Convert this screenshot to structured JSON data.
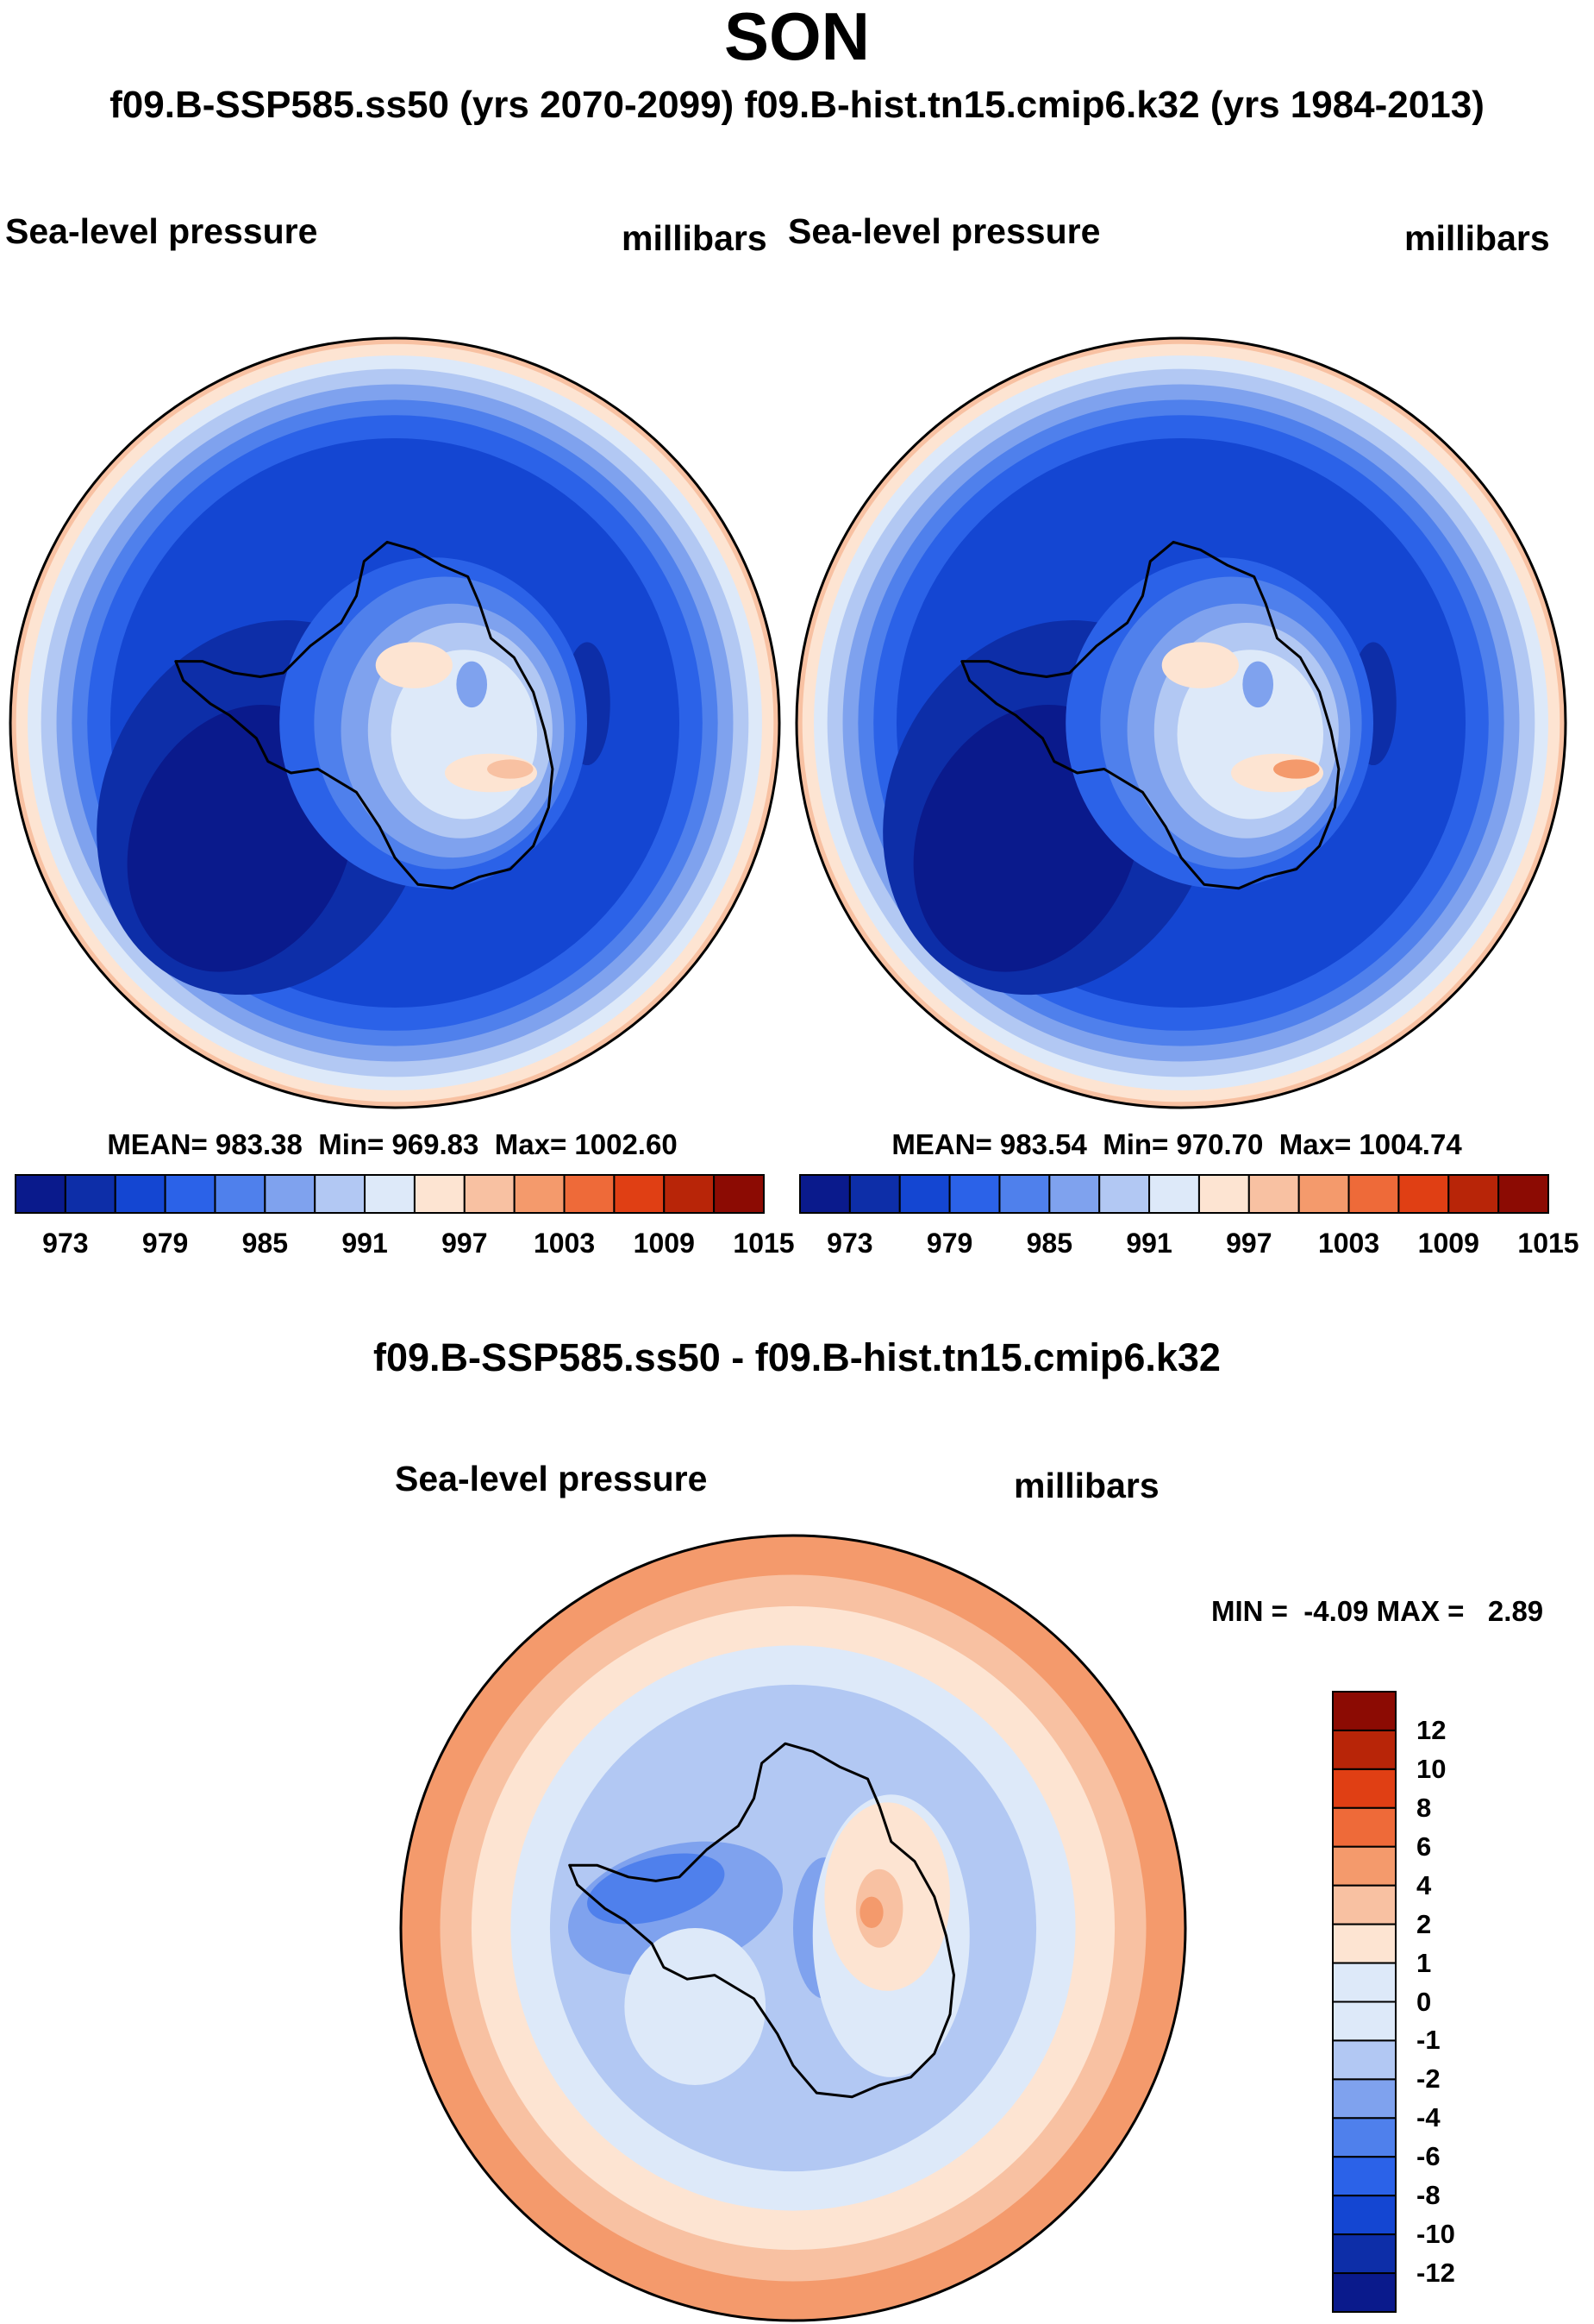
{
  "title": "SON",
  "subtitle": "f09.B-SSP585.ss50 (yrs 2070-2099)  f09.B-hist.tn15.cmip6.k32 (yrs 1984-2013)",
  "difference_title": "f09.B-SSP585.ss50 - f09.B-hist.tn15.cmip6.k32",
  "colors": {
    "abs_palette": [
      "#0a1a8c",
      "#0d2ea8",
      "#1446d2",
      "#2b62e8",
      "#4f80ec",
      "#7fa2ee",
      "#b2c8f3",
      "#dde9f9",
      "#fde4d2",
      "#f8c1a2",
      "#f49a6c",
      "#ee6a39",
      "#e03f14",
      "#b82508",
      "#8c0b03"
    ],
    "diff_palette": [
      "#0a1a8c",
      "#0d2ea8",
      "#1446d2",
      "#2b62e8",
      "#4f80ec",
      "#7fa2ee",
      "#b2c8f3",
      "#dde9f9",
      "#fde4d2",
      "#f8c1a2",
      "#f49a6c",
      "#ee6a39",
      "#e03f14",
      "#b82508",
      "#8c0b03"
    ],
    "land_outline": "#000000"
  },
  "chart_data": [
    {
      "type": "heatmap",
      "projection": "south-polar-stereographic",
      "panel": "future",
      "left_label": "Sea-level pressure",
      "right_label": "millibars",
      "mean_label": "MEAN= 983.38",
      "min_label": "Min= 969.83",
      "max_label": "Max= 1002.60",
      "mean": 983.38,
      "min": 969.83,
      "max": 1002.6,
      "colorbar": {
        "orientation": "horizontal",
        "levels": [
          973,
          976,
          979,
          982,
          985,
          988,
          991,
          994,
          997,
          1000,
          1003,
          1006,
          1009,
          1012,
          1015
        ],
        "tick_labels": [
          "973",
          "979",
          "985",
          "991",
          "997",
          "1003",
          "1009",
          "1015"
        ]
      }
    },
    {
      "type": "heatmap",
      "projection": "south-polar-stereographic",
      "panel": "historical",
      "left_label": "Sea-level pressure",
      "right_label": "millibars",
      "mean_label": "MEAN= 983.54",
      "min_label": "Min= 970.70",
      "max_label": "Max= 1004.74",
      "mean": 983.54,
      "min": 970.7,
      "max": 1004.74,
      "colorbar": {
        "orientation": "horizontal",
        "levels": [
          973,
          976,
          979,
          982,
          985,
          988,
          991,
          994,
          997,
          1000,
          1003,
          1006,
          1009,
          1012,
          1015
        ],
        "tick_labels": [
          "973",
          "979",
          "985",
          "991",
          "997",
          "1003",
          "1009",
          "1015"
        ]
      }
    },
    {
      "type": "heatmap",
      "projection": "south-polar-stereographic",
      "panel": "difference",
      "left_label": "Sea-level pressure",
      "right_label": "millibars",
      "minmax_label": "MIN =  -4.09 MAX =   2.89",
      "min": -4.09,
      "max": 2.89,
      "colorbar": {
        "orientation": "vertical",
        "tick_labels": [
          "12",
          "10",
          "8",
          "6",
          "4",
          "2",
          "1",
          "0",
          "-1",
          "-2",
          "-4",
          "-6",
          "-8",
          "-10",
          "-12"
        ]
      }
    }
  ]
}
